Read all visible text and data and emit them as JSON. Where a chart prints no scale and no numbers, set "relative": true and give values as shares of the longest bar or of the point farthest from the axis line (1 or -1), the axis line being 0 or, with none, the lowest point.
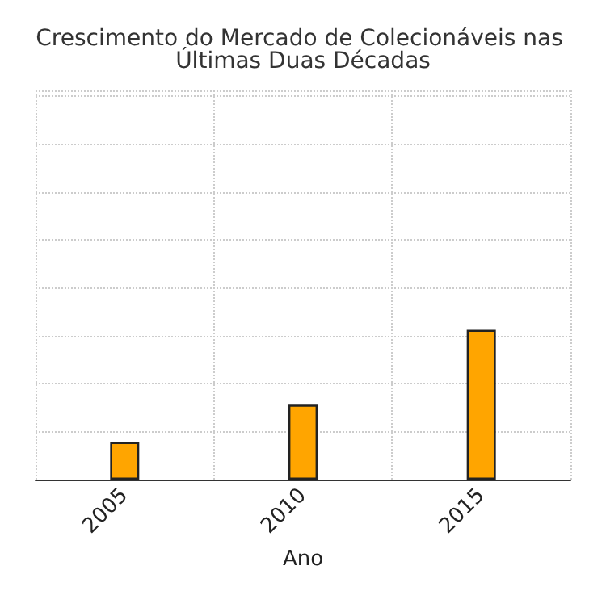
{
  "chart_data": {
    "type": "bar",
    "title": "Crescimento do Mercado de Colecionáveis nas Últimas Duas Décadas",
    "xlabel": "Ano",
    "categories": [
      "2005",
      "2010",
      "2015"
    ],
    "values": [
      0.25,
      0.5,
      1
    ],
    "color": "#ffa500",
    "relative": true,
    "grid": true
  }
}
